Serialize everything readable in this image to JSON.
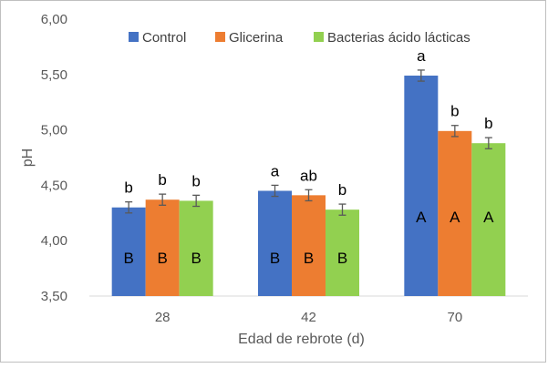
{
  "chart_data": {
    "type": "bar",
    "categories": [
      "28",
      "42",
      "70"
    ],
    "xlabel": "Edad de rebrote (d)",
    "ylabel": "pH",
    "ylim": [
      3.5,
      6.0
    ],
    "yticks": [
      "3,50",
      "4,00",
      "4,50",
      "5,00",
      "5,50",
      "6,00"
    ],
    "grid": false,
    "legend_position": "top",
    "series": [
      {
        "name": "Control",
        "color": "#4472C4",
        "values": [
          4.3,
          4.45,
          5.49
        ],
        "errors": [
          0.05,
          0.05,
          0.05
        ],
        "top_labels": [
          "b",
          "a",
          "a"
        ],
        "inner_labels": [
          "B",
          "B",
          "A"
        ]
      },
      {
        "name": "Glicerina",
        "color": "#ED7D31",
        "values": [
          4.37,
          4.41,
          4.99
        ],
        "errors": [
          0.05,
          0.05,
          0.05
        ],
        "top_labels": [
          "b",
          "ab",
          "b"
        ],
        "inner_labels": [
          "B",
          "B",
          "A"
        ]
      },
      {
        "name": "Bacterias ácido lácticas",
        "color": "#92D050",
        "values": [
          4.36,
          4.28,
          4.88
        ],
        "errors": [
          0.05,
          0.05,
          0.05
        ],
        "top_labels": [
          "b",
          "b",
          "b"
        ],
        "inner_labels": [
          "B",
          "B",
          "A"
        ]
      }
    ]
  }
}
